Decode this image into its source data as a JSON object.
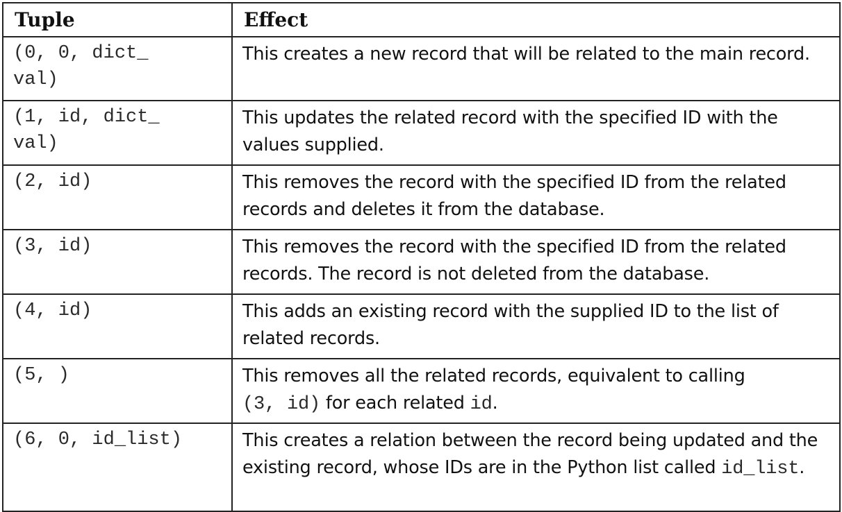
{
  "table": {
    "headers": {
      "tuple": "Tuple",
      "effect": "Effect"
    },
    "rows": [
      {
        "tuple": "(0, 0, dict_\nval)",
        "effect": "This creates a new record that will be related to the main record."
      },
      {
        "tuple": "(1, id, dict_\nval)",
        "effect": "This updates the related record with the specified ID with the values supplied."
      },
      {
        "tuple": "(2, id)",
        "effect": "This removes the record with the specified ID from the related records and deletes it from the database."
      },
      {
        "tuple": "(3, id)",
        "effect": "This removes the record with the specified ID from the related records. The record is not deleted from the database."
      },
      {
        "tuple": "(4, id)",
        "effect": "This adds an existing record with the supplied ID to the list of related records."
      },
      {
        "tuple": "(5, )",
        "effect_part1": "This removes all the related records, equivalent to calling",
        "effect_code1": "(3, id)",
        "effect_part2": " for each related ",
        "effect_code2": "id",
        "effect_part3": "."
      },
      {
        "tuple": "(6, 0, id_list)",
        "effect_part1": "This creates a relation between the record being updated and the existing record, whose IDs are in the Python list called ",
        "effect_code1": "id_list",
        "effect_part2": "."
      }
    ]
  }
}
